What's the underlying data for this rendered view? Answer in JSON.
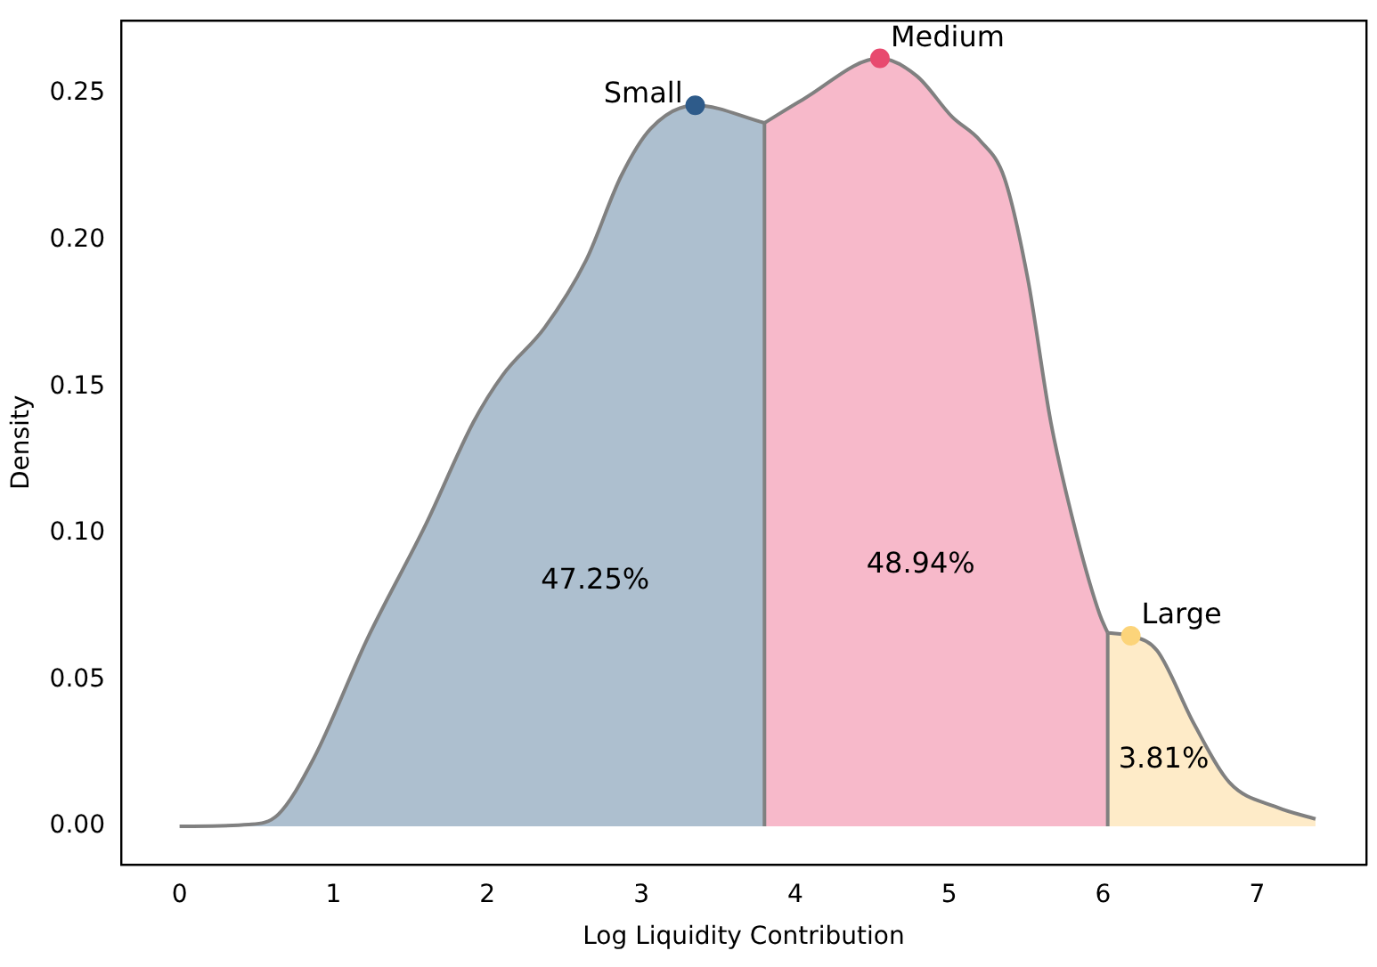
{
  "chart_data": {
    "type": "area",
    "xlabel": "Log Liquidity Contribution",
    "ylabel": "Density",
    "xlim": [
      -0.38,
      7.71
    ],
    "ylim": [
      -0.013,
      0.275
    ],
    "xticks": [
      0,
      1,
      2,
      3,
      4,
      5,
      6,
      7
    ],
    "yticks": [
      {
        "value": 0,
        "label": "0.00"
      },
      {
        "value": 0.05,
        "label": "0.05"
      },
      {
        "value": 0.1,
        "label": "0.10"
      },
      {
        "value": 0.15,
        "label": "0.15"
      },
      {
        "value": 0.2,
        "label": "0.20"
      },
      {
        "value": 0.25,
        "label": "0.25"
      }
    ],
    "grid": false,
    "legend": false,
    "series": [
      {
        "color": "#adbfcf",
        "x": [
          0,
          0.45,
          0.64,
          0.87,
          1.22,
          1.6,
          1.91,
          2.1,
          2.37,
          2.64,
          2.87,
          3.06,
          3.35,
          3.8
        ],
        "values": [
          0,
          0.0006,
          0.004,
          0.023,
          0.064,
          0.103,
          0.138,
          0.154,
          0.17,
          0.193,
          0.222,
          0.238,
          0.246,
          0.24
        ]
      },
      {
        "color": "#f7b9ca",
        "x": [
          3.8,
          4.05,
          4.55,
          4.79,
          5.02,
          5.2,
          5.36,
          5.51,
          5.66,
          5.83,
          5.98,
          6.03
        ],
        "values": [
          0.24,
          0.248,
          0.262,
          0.256,
          0.242,
          0.234,
          0.221,
          0.187,
          0.138,
          0.099,
          0.072,
          0.066
        ]
      },
      {
        "color": "#feebc8",
        "x": [
          6.03,
          6.18,
          6.35,
          6.59,
          6.82,
          7.13,
          7.38
        ],
        "values": [
          0.066,
          0.065,
          0.06,
          0.035,
          0.015,
          0.0065,
          0.0025
        ]
      },
      {
        "type": "scatter",
        "name": "Small",
        "color": "#2e5b8a",
        "x": [
          3.35
        ],
        "values": [
          0.246
        ]
      },
      {
        "type": "scatter",
        "name": "Medium",
        "color": "#e84a6f",
        "x": [
          4.55
        ],
        "values": [
          0.262
        ]
      },
      {
        "type": "scatter",
        "name": "Large",
        "color": "#fcd47a",
        "x": [
          6.18
        ],
        "values": [
          0.065
        ]
      }
    ],
    "ref_lines": [
      {
        "axis": "x",
        "value": 3.8,
        "color": "#808080"
      },
      {
        "axis": "x",
        "value": 6.03,
        "color": "#808080"
      }
    ],
    "annotations": [
      "47.25%",
      "48.94%",
      "3.81%"
    ]
  }
}
